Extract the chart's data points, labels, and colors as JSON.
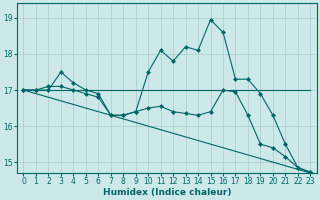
{
  "xlabel": "Humidex (Indice chaleur)",
  "bg_color": "#cce8e8",
  "grid_color": "#aacccc",
  "line_color": "#006666",
  "xlim": [
    -0.5,
    23.5
  ],
  "ylim": [
    14.7,
    19.4
  ],
  "yticks": [
    15,
    16,
    17,
    18,
    19
  ],
  "xticks": [
    0,
    1,
    2,
    3,
    4,
    5,
    6,
    7,
    8,
    9,
    10,
    11,
    12,
    13,
    14,
    15,
    16,
    17,
    18,
    19,
    20,
    21,
    22,
    23
  ],
  "series": [
    {
      "x": [
        0,
        23
      ],
      "y": [
        17.0,
        17.0
      ],
      "marker": false
    },
    {
      "x": [
        0,
        23
      ],
      "y": [
        17.0,
        14.7
      ],
      "marker": false
    },
    {
      "x": [
        0,
        1,
        2,
        3,
        4,
        5,
        6,
        7,
        8,
        9,
        10,
        11,
        12,
        13,
        14,
        15,
        16,
        17,
        18,
        19,
        20,
        21,
        22,
        23
      ],
      "y": [
        17.0,
        17.0,
        17.0,
        17.5,
        17.2,
        17.0,
        16.9,
        16.3,
        16.3,
        16.4,
        17.5,
        18.1,
        17.8,
        18.2,
        18.1,
        18.95,
        18.6,
        17.3,
        17.3,
        16.9,
        16.3,
        15.5,
        14.85,
        14.72
      ],
      "marker": true
    },
    {
      "x": [
        0,
        1,
        2,
        3,
        4,
        5,
        6,
        7,
        8,
        9,
        10,
        11,
        12,
        13,
        14,
        15,
        16,
        17,
        18,
        19,
        20,
        21,
        22,
        23
      ],
      "y": [
        17.0,
        17.0,
        17.1,
        17.1,
        17.0,
        16.9,
        16.8,
        16.3,
        16.3,
        16.4,
        16.5,
        16.55,
        16.4,
        16.35,
        16.3,
        16.4,
        17.0,
        16.95,
        16.3,
        15.5,
        15.4,
        15.15,
        14.85,
        14.72
      ],
      "marker": true
    }
  ]
}
